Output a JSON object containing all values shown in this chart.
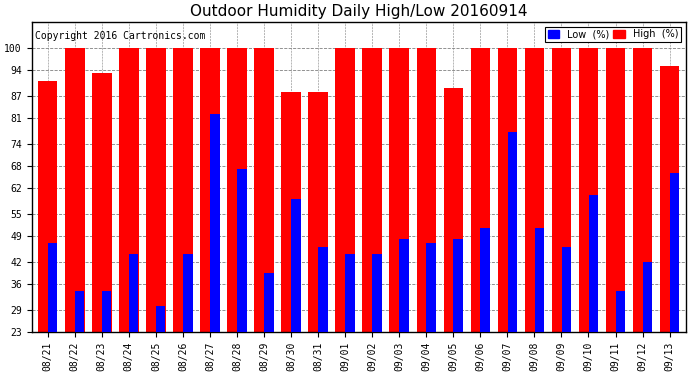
{
  "title": "Outdoor Humidity Daily High/Low 20160914",
  "copyright": "Copyright 2016 Cartronics.com",
  "background_color": "#ffffff",
  "plot_bg_color": "#ffffff",
  "bar_color_high": "#ff0000",
  "bar_color_low": "#0000ff",
  "legend_low_label": "Low  (%)",
  "legend_high_label": "High  (%)",
  "dates": [
    "08/21",
    "08/22",
    "08/23",
    "08/24",
    "08/25",
    "08/26",
    "08/27",
    "08/28",
    "08/29",
    "08/30",
    "08/31",
    "09/01",
    "09/02",
    "09/03",
    "09/04",
    "09/05",
    "09/06",
    "09/07",
    "09/08",
    "09/09",
    "09/10",
    "09/11",
    "09/12",
    "09/13"
  ],
  "high": [
    91,
    100,
    93,
    100,
    100,
    100,
    100,
    100,
    100,
    88,
    88,
    100,
    100,
    100,
    100,
    89,
    100,
    100,
    100,
    100,
    100,
    100,
    100,
    95
  ],
  "low": [
    47,
    34,
    34,
    44,
    30,
    44,
    82,
    67,
    39,
    59,
    46,
    44,
    44,
    48,
    47,
    48,
    51,
    77,
    51,
    46,
    60,
    34,
    42,
    66
  ],
  "yticks": [
    23,
    29,
    36,
    42,
    49,
    55,
    62,
    68,
    74,
    81,
    87,
    94,
    100
  ],
  "ymin": 23,
  "ymax": 107,
  "title_fontsize": 11,
  "tick_fontsize": 7,
  "copyright_fontsize": 7
}
